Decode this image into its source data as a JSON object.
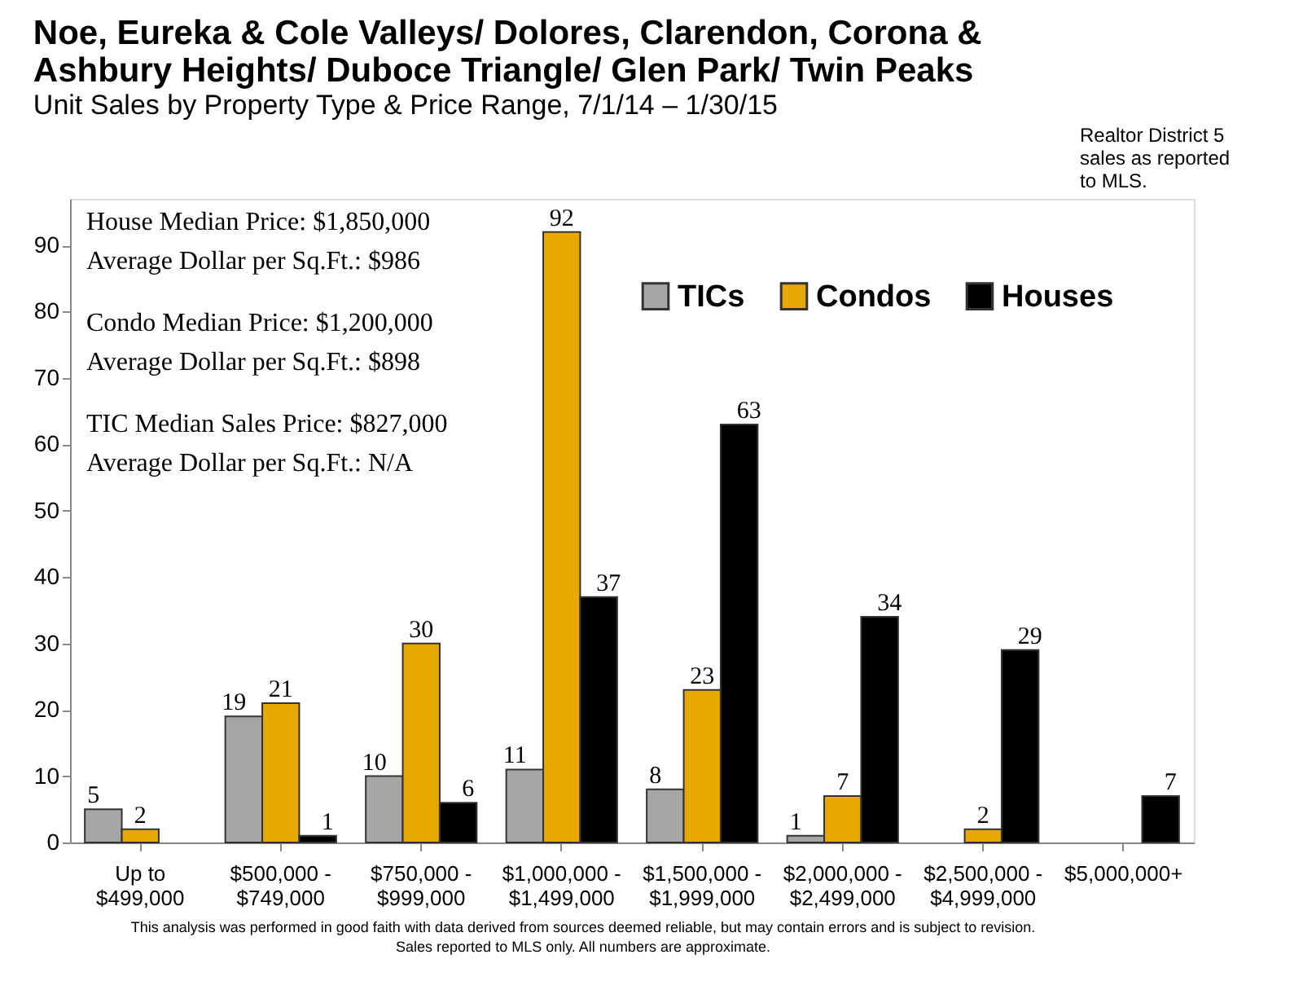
{
  "chart_data": {
    "type": "bar",
    "title": "Noe, Eureka & Cole Valleys/ Dolores, Clarendon, Corona &\nAshbury Heights/ Duboce Triangle/ Glen Park/ Twin Peaks",
    "subtitle": "Unit Sales by Property Type & Price Range,  7/1/14  – 1/30/15",
    "categories": [
      "Up to\n$499,000",
      "$500,000 -\n$749,000",
      "$750,000 -\n$999,000",
      "$1,000,000 -\n$1,499,000",
      "$1,500,000 -\n$1,999,000",
      "$2,000,000 -\n$2,499,000",
      "$2,500,000 -\n$4,999,000",
      "$5,000,000+"
    ],
    "series": [
      {
        "name": "TICs",
        "color": "#a6a6a6",
        "values": [
          5,
          19,
          10,
          11,
          8,
          1,
          null,
          null
        ]
      },
      {
        "name": "Condos",
        "color": "#e8a800",
        "values": [
          2,
          21,
          30,
          92,
          23,
          7,
          2,
          null
        ]
      },
      {
        "name": "Houses",
        "color": "#000000",
        "values": [
          null,
          1,
          6,
          37,
          63,
          34,
          29,
          7
        ]
      }
    ],
    "ylim": [
      0,
      97
    ],
    "yticks": [
      0,
      10,
      20,
      30,
      40,
      50,
      60,
      70,
      80,
      90
    ],
    "data_labels": true,
    "grid": false,
    "legend": "top right",
    "annotations": [
      "House Median Price:  $1,850,000",
      "Average Dollar per Sq.Ft.: $986",
      "Condo Median Price: $1,200,000",
      "Average Dollar per Sq.Ft.: $898",
      "TIC Median Sales Price: $827,000",
      "Average Dollar per Sq.Ft.: N/A",
      "Realtor District 5\nsales as reported\nto MLS.",
      "This analysis was performed in good faith with data derived from sources deemed reliable, but may contain errors and is subject to revision.",
      "Sales reported to MLS  only.  All numbers are approximate."
    ]
  }
}
